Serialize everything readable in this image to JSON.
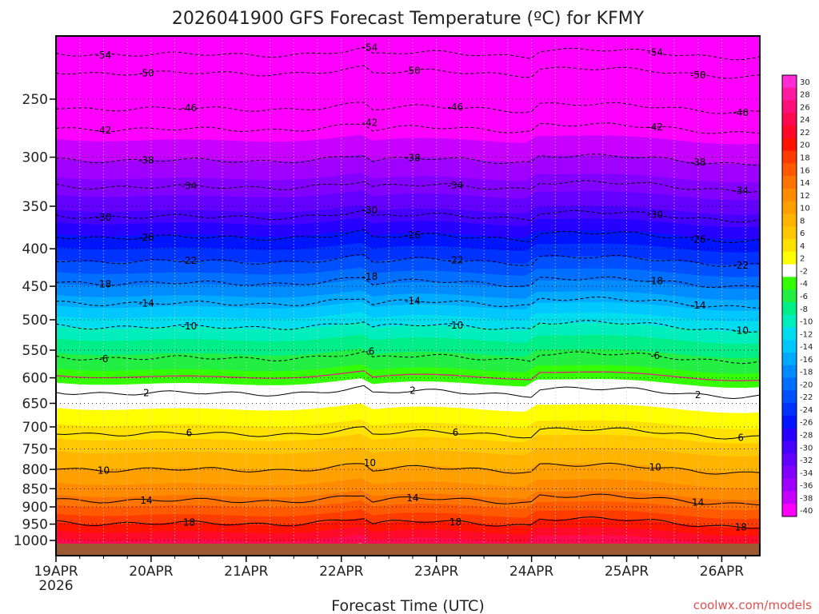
{
  "chart_data": {
    "type": "heatmap",
    "title": "2026041900 GFS Forecast Temperature (ºC) for KFMY",
    "xlabel": "Forecast Time (UTC)",
    "ylabel": "",
    "x_ticks": [
      "19APR",
      "20APR",
      "21APR",
      "22APR",
      "23APR",
      "24APR",
      "25APR",
      "26APR"
    ],
    "x_year": "2026",
    "x_range_days": [
      0,
      7.4
    ],
    "y_ticks": [
      250,
      300,
      350,
      400,
      450,
      500,
      550,
      600,
      650,
      700,
      750,
      800,
      850,
      900,
      950,
      1000
    ],
    "y_range_hpa": [
      200,
      1015
    ],
    "contour_levels_labeled": [
      {
        "value": "-54",
        "p": 215
      },
      {
        "value": "-50",
        "p": 228
      },
      {
        "value": "-46",
        "p": 255
      },
      {
        "value": "-42",
        "p": 272
      },
      {
        "value": "-38",
        "p": 300
      },
      {
        "value": "-34",
        "p": 326
      },
      {
        "value": "-30",
        "p": 358
      },
      {
        "value": "-26",
        "p": 382
      },
      {
        "value": "-22",
        "p": 412
      },
      {
        "value": "-18",
        "p": 441
      },
      {
        "value": "-14",
        "p": 470
      },
      {
        "value": "-10",
        "p": 506
      },
      {
        "value": "-6",
        "p": 558
      },
      {
        "value": "2",
        "p": 623
      },
      {
        "value": "6",
        "p": 708
      },
      {
        "value": "10",
        "p": 792
      },
      {
        "value": "14",
        "p": 873
      },
      {
        "value": "18",
        "p": 938
      }
    ],
    "colorbar": {
      "labels": [
        "30",
        "28",
        "26",
        "24",
        "22",
        "20",
        "18",
        "16",
        "14",
        "12",
        "10",
        "8",
        "6",
        "4",
        "2",
        "-2",
        "-4",
        "-6",
        "-8",
        "-10",
        "-12",
        "-14",
        "-16",
        "-18",
        "-20",
        "-22",
        "-24",
        "-26",
        "-28",
        "-30",
        "-32",
        "-34",
        "-36",
        "-38",
        "-40"
      ],
      "colors": [
        "#ff2bd6",
        "#ff1aa0",
        "#ff0f78",
        "#ff0a50",
        "#ff0a28",
        "#ff1400",
        "#ff3c00",
        "#ff5a00",
        "#ff7300",
        "#ff8c00",
        "#ffa000",
        "#ffb400",
        "#ffc800",
        "#ffe100",
        "#ffff00",
        "#ffffff",
        "#33ff00",
        "#22ee44",
        "#00ee88",
        "#00eebb",
        "#00ddee",
        "#00c8ff",
        "#00aaff",
        "#008cff",
        "#006eff",
        "#0050ff",
        "#0032ff",
        "#0014ff",
        "#2800ff",
        "#4600ff",
        "#6400ff",
        "#8200ff",
        "#a000ff",
        "#c800ff",
        "#ff00ff"
      ]
    },
    "ground_color": "#9c5a32"
  },
  "credit": "coolwx.com/models"
}
